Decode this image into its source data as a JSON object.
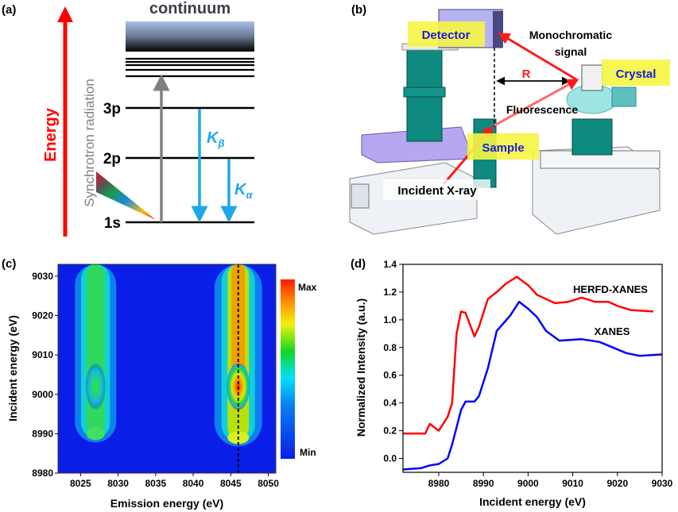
{
  "panel_a": {
    "label": "(a)",
    "energy_label": "Energy",
    "continuum_label": "continuum",
    "synchrotron_label": "Synchrotron radiation",
    "levels": [
      "3p",
      "2p",
      "1s"
    ],
    "kbeta": "K",
    "kbeta_sub": "β",
    "kalpha": "K",
    "kalpha_sub": "α",
    "colors": {
      "energy": "#ff0000",
      "emission": "#1ea8e8",
      "excitation": "#808080"
    }
  },
  "panel_b": {
    "label": "(b)",
    "detector": "Detector",
    "monochromatic_1": "Monochromatic",
    "monochromatic_2": "signal",
    "crystal": "Crystal",
    "r_label": "R",
    "fluorescence": "Fluorescence",
    "sample": "Sample",
    "incident": "Incident X-ray",
    "colors": {
      "highlight": "#f5f542",
      "label_text": "#1a1adc",
      "beam": "#ff1a1a",
      "stage": "#0e8a80",
      "motor": "#b7a6f0"
    }
  },
  "chart_data": [
    {
      "panel": "(c)",
      "type": "heatmap",
      "xlabel": "Emission energy (eV)",
      "ylabel": "Incident energy (eV)",
      "xlim": [
        8022,
        8051
      ],
      "ylim": [
        8980,
        9033
      ],
      "xticks": [
        "8025",
        "8030",
        "8035",
        "8040",
        "8045",
        "8050"
      ],
      "yticks": [
        "8980",
        "8990",
        "9000",
        "9010",
        "9020",
        "9030"
      ],
      "colorbar": {
        "max_label": "Max",
        "min_label": "Min",
        "colors": [
          "#0a1ee8",
          "#00d8ff",
          "#12d820",
          "#f2f20a",
          "#ff1a00"
        ]
      },
      "peaks": [
        {
          "emission": 8027,
          "onset_incident": 8989,
          "max_incident": 9002,
          "relative_intensity": 0.5
        },
        {
          "emission": 8046,
          "onset_incident": 8988,
          "max_incident": 9002,
          "relative_intensity": 1.0
        }
      ],
      "dashed_line_emission": 8046
    },
    {
      "panel": "(d)",
      "type": "line",
      "xlabel": "Incident energy (eV)",
      "ylabel": "Normalized Intensity (a.u.)",
      "xlim": [
        8972,
        9030
      ],
      "ylim": [
        -0.1,
        1.4
      ],
      "xticks": [
        "8980",
        "8990",
        "9000",
        "9010",
        "9020",
        "9030"
      ],
      "yticks": [
        "0.0",
        "0.2",
        "0.4",
        "0.6",
        "0.8",
        "1.0",
        "1.2",
        "1.4"
      ],
      "series": [
        {
          "name": "HERFD-XANES",
          "color": "#ff0000",
          "x": [
            8972,
            8977,
            8978,
            8980,
            8982,
            8983,
            8984,
            8985,
            8986,
            8988,
            8989,
            8991,
            8993,
            8995,
            8997.5,
            9000,
            9002,
            9006,
            9009,
            9012,
            9015,
            9018,
            9020,
            9023,
            9028
          ],
          "y": [
            0.18,
            0.18,
            0.25,
            0.2,
            0.3,
            0.4,
            0.9,
            1.06,
            1.05,
            0.88,
            0.95,
            1.15,
            1.2,
            1.26,
            1.31,
            1.25,
            1.18,
            1.12,
            1.13,
            1.16,
            1.13,
            1.13,
            1.1,
            1.07,
            1.06
          ]
        },
        {
          "name": "XANES",
          "color": "#0000ff",
          "x": [
            8972,
            8976,
            8978,
            8980,
            8982,
            8983,
            8985,
            8986,
            8988,
            8989,
            8991,
            8993,
            8996,
            8998,
            9000,
            9002,
            9004,
            9007,
            9012,
            9016,
            9019,
            9022,
            9025,
            9030
          ],
          "y": [
            -0.08,
            -0.07,
            -0.05,
            -0.04,
            0.0,
            0.1,
            0.35,
            0.41,
            0.41,
            0.45,
            0.65,
            0.92,
            1.03,
            1.13,
            1.08,
            1.02,
            0.92,
            0.85,
            0.86,
            0.84,
            0.8,
            0.76,
            0.74,
            0.75
          ]
        }
      ]
    }
  ]
}
